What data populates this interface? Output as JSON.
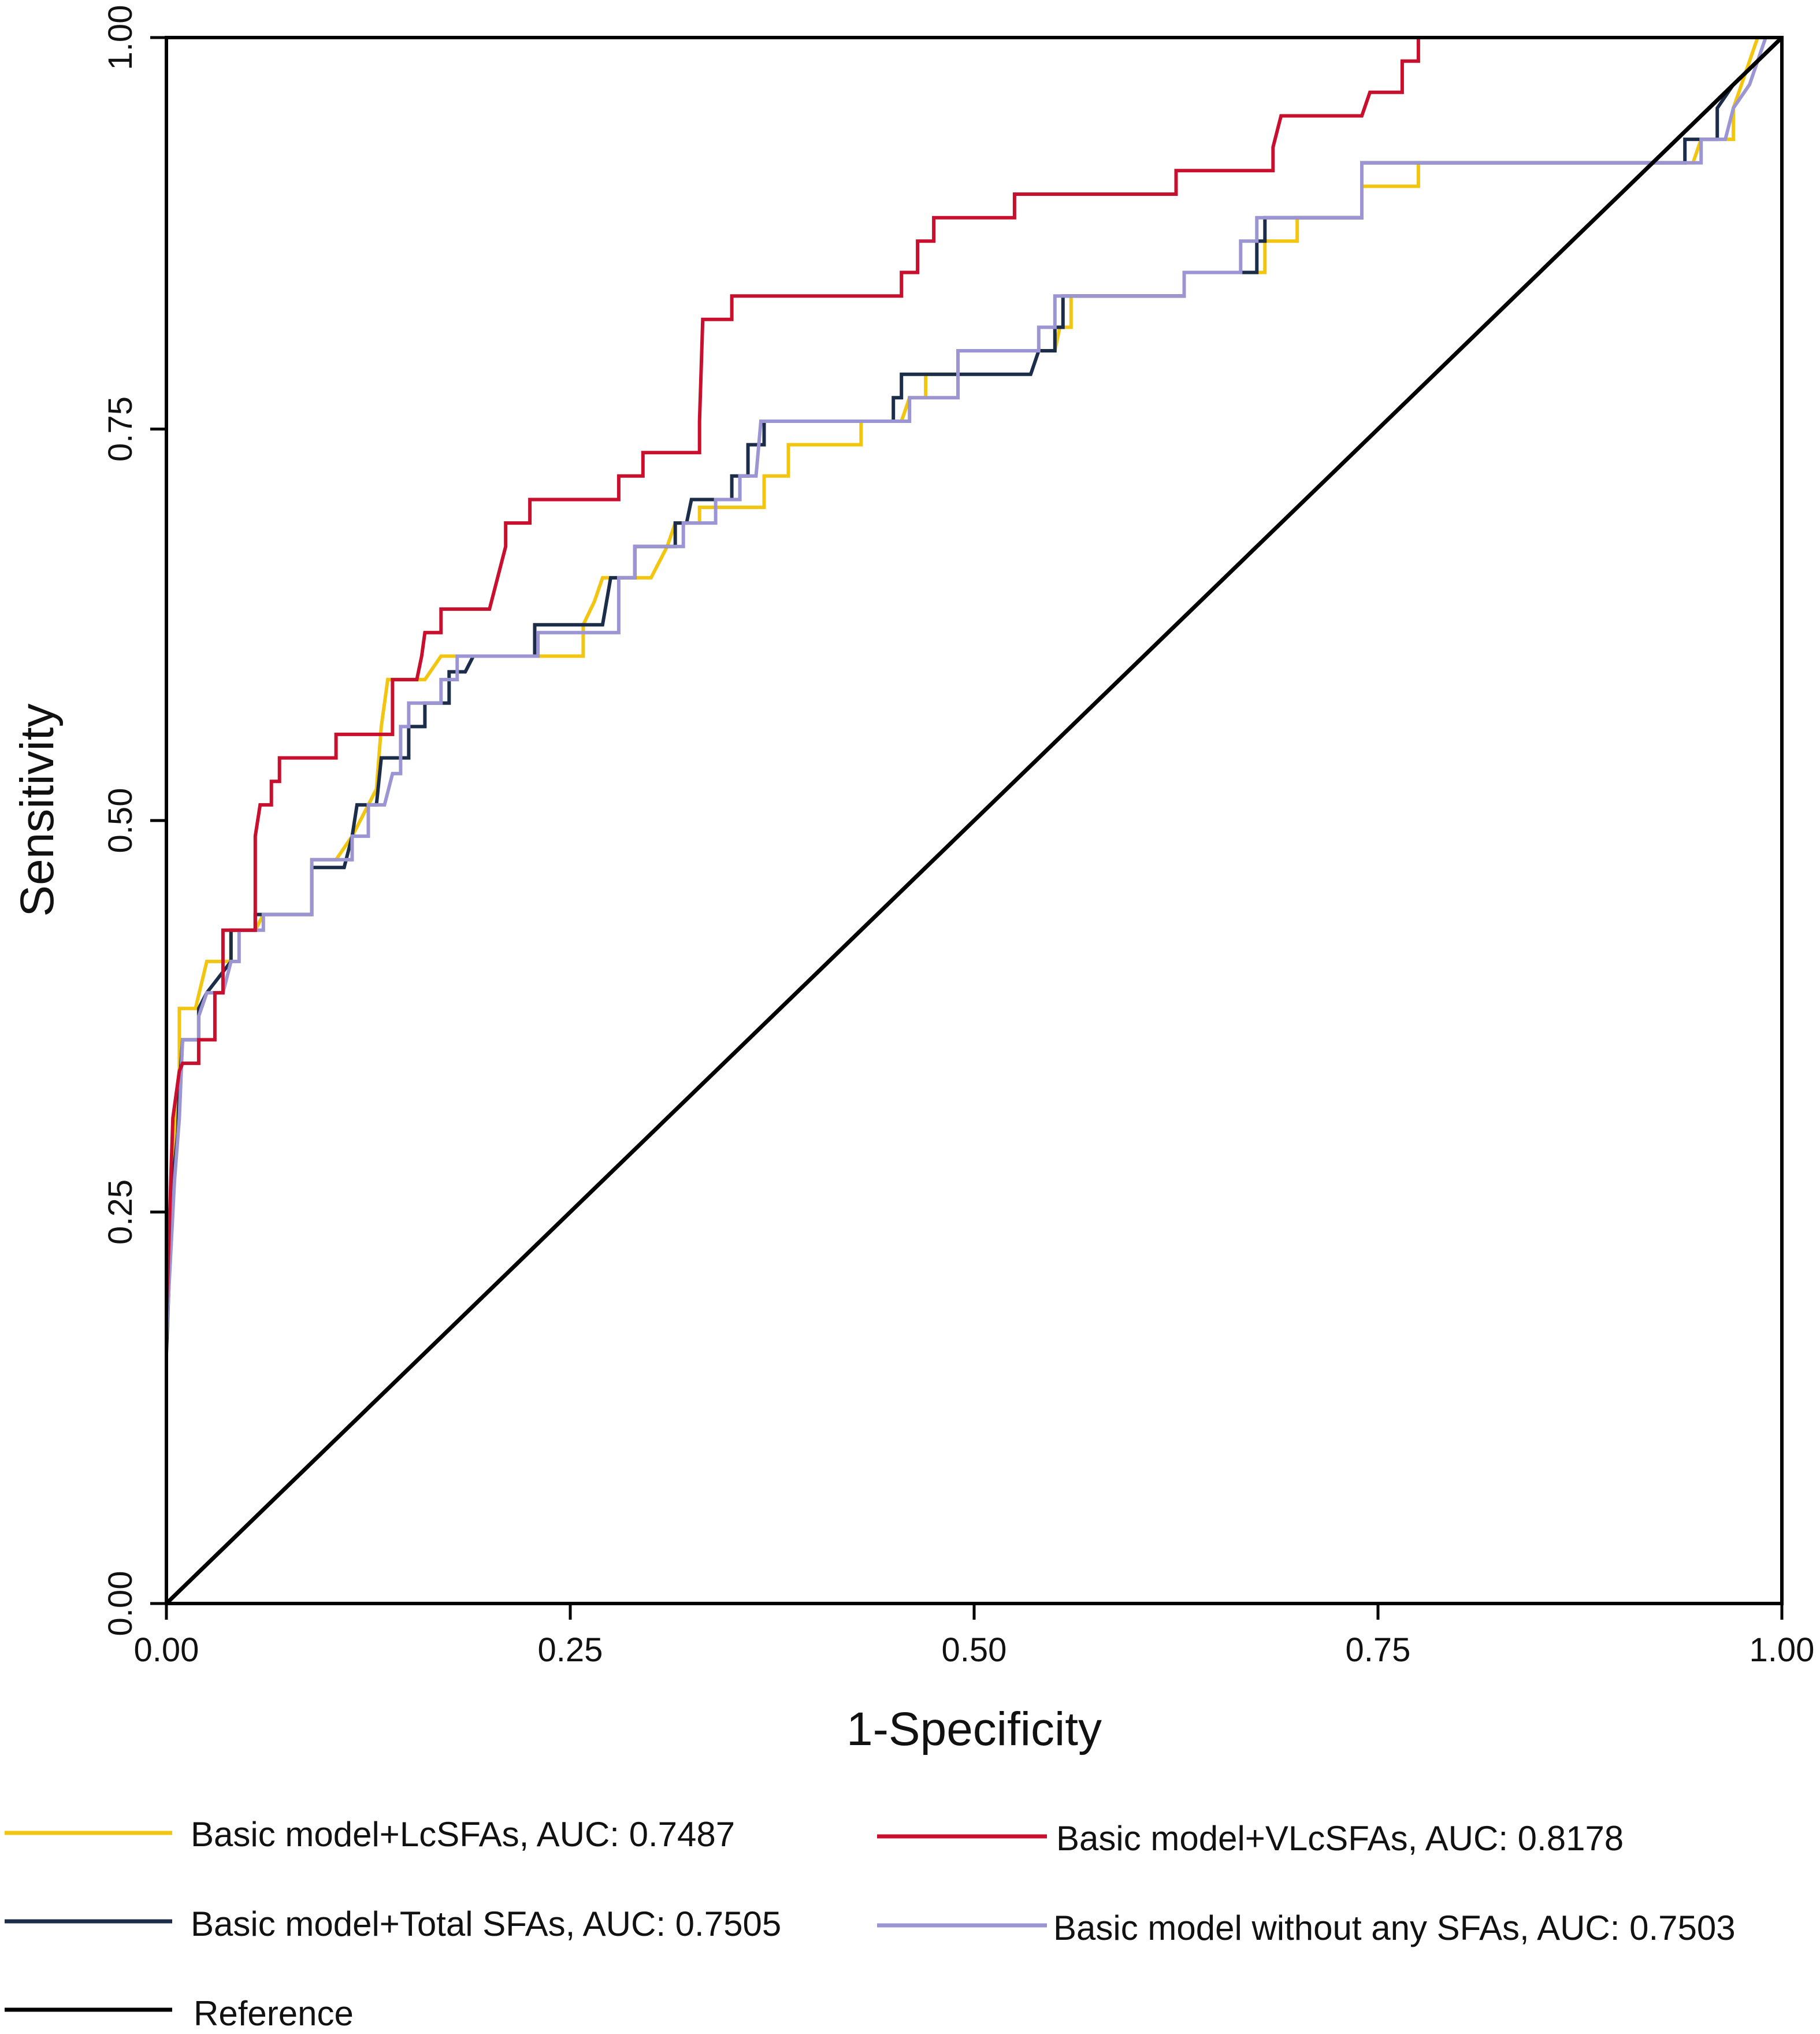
{
  "chart_data": {
    "type": "line",
    "title": "",
    "xlabel": "1-Specificity",
    "ylabel": "Sensitivity",
    "xlim": [
      0,
      1
    ],
    "ylim": [
      0,
      1
    ],
    "x_ticks": [
      "0.00",
      "0.25",
      "0.50",
      "0.75",
      "1.00"
    ],
    "y_ticks": [
      "0.00",
      "0.25",
      "0.50",
      "0.75",
      "1.00"
    ],
    "grid": false,
    "legend_position": "bottom",
    "series": [
      {
        "name": "Basic model+LcSFAs",
        "label": "Basic model+LcSFAs, AUC: 0.7487",
        "auc": 0.7487,
        "color": "#f2c511",
        "points": [
          [
            0,
            0
          ],
          [
            0,
            0.16
          ],
          [
            0.003,
            0.25
          ],
          [
            0.005,
            0.3
          ],
          [
            0.008,
            0.34
          ],
          [
            0.008,
            0.38
          ],
          [
            0.018,
            0.38
          ],
          [
            0.025,
            0.41
          ],
          [
            0.04,
            0.41
          ],
          [
            0.04,
            0.43
          ],
          [
            0.055,
            0.43
          ],
          [
            0.06,
            0.44
          ],
          [
            0.09,
            0.44
          ],
          [
            0.09,
            0.475
          ],
          [
            0.105,
            0.475
          ],
          [
            0.115,
            0.49
          ],
          [
            0.125,
            0.51
          ],
          [
            0.13,
            0.52
          ],
          [
            0.133,
            0.56
          ],
          [
            0.137,
            0.59
          ],
          [
            0.16,
            0.59
          ],
          [
            0.17,
            0.605
          ],
          [
            0.19,
            0.605
          ],
          [
            0.23,
            0.605
          ],
          [
            0.258,
            0.605
          ],
          [
            0.258,
            0.625
          ],
          [
            0.265,
            0.64
          ],
          [
            0.27,
            0.655
          ],
          [
            0.3,
            0.655
          ],
          [
            0.31,
            0.675
          ],
          [
            0.315,
            0.69
          ],
          [
            0.33,
            0.69
          ],
          [
            0.33,
            0.7
          ],
          [
            0.37,
            0.7
          ],
          [
            0.37,
            0.72
          ],
          [
            0.385,
            0.72
          ],
          [
            0.385,
            0.74
          ],
          [
            0.43,
            0.74
          ],
          [
            0.43,
            0.755
          ],
          [
            0.455,
            0.755
          ],
          [
            0.46,
            0.77
          ],
          [
            0.47,
            0.77
          ],
          [
            0.47,
            0.785
          ],
          [
            0.49,
            0.785
          ],
          [
            0.49,
            0.8
          ],
          [
            0.55,
            0.8
          ],
          [
            0.553,
            0.815
          ],
          [
            0.56,
            0.815
          ],
          [
            0.56,
            0.835
          ],
          [
            0.63,
            0.835
          ],
          [
            0.63,
            0.85
          ],
          [
            0.68,
            0.85
          ],
          [
            0.68,
            0.87
          ],
          [
            0.7,
            0.87
          ],
          [
            0.7,
            0.885
          ],
          [
            0.74,
            0.885
          ],
          [
            0.74,
            0.905
          ],
          [
            0.775,
            0.905
          ],
          [
            0.775,
            0.92
          ],
          [
            0.945,
            0.92
          ],
          [
            0.95,
            0.935
          ],
          [
            0.97,
            0.935
          ],
          [
            0.97,
            0.955
          ],
          [
            0.975,
            0.97
          ],
          [
            0.985,
            1
          ],
          [
            1,
            1
          ]
        ]
      },
      {
        "name": "Basic model+VLcSFAs",
        "label": "Basic model+VLcSFAs, AUC: 0.8178",
        "auc": 0.8178,
        "color": "#c8102e",
        "points": [
          [
            0,
            0
          ],
          [
            0,
            0.18
          ],
          [
            0.003,
            0.28
          ],
          [
            0.004,
            0.31
          ],
          [
            0.008,
            0.34
          ],
          [
            0.01,
            0.345
          ],
          [
            0.02,
            0.345
          ],
          [
            0.02,
            0.36
          ],
          [
            0.03,
            0.36
          ],
          [
            0.03,
            0.39
          ],
          [
            0.035,
            0.39
          ],
          [
            0.035,
            0.43
          ],
          [
            0.055,
            0.43
          ],
          [
            0.055,
            0.49
          ],
          [
            0.058,
            0.51
          ],
          [
            0.065,
            0.51
          ],
          [
            0.065,
            0.525
          ],
          [
            0.07,
            0.525
          ],
          [
            0.07,
            0.54
          ],
          [
            0.105,
            0.54
          ],
          [
            0.105,
            0.555
          ],
          [
            0.14,
            0.555
          ],
          [
            0.14,
            0.59
          ],
          [
            0.155,
            0.59
          ],
          [
            0.158,
            0.605
          ],
          [
            0.16,
            0.62
          ],
          [
            0.17,
            0.62
          ],
          [
            0.17,
            0.635
          ],
          [
            0.2,
            0.635
          ],
          [
            0.205,
            0.655
          ],
          [
            0.21,
            0.675
          ],
          [
            0.21,
            0.69
          ],
          [
            0.225,
            0.69
          ],
          [
            0.225,
            0.705
          ],
          [
            0.28,
            0.705
          ],
          [
            0.28,
            0.72
          ],
          [
            0.295,
            0.72
          ],
          [
            0.295,
            0.735
          ],
          [
            0.33,
            0.735
          ],
          [
            0.33,
            0.755
          ],
          [
            0.332,
            0.82
          ],
          [
            0.35,
            0.82
          ],
          [
            0.35,
            0.835
          ],
          [
            0.455,
            0.835
          ],
          [
            0.455,
            0.85
          ],
          [
            0.465,
            0.85
          ],
          [
            0.465,
            0.87
          ],
          [
            0.475,
            0.87
          ],
          [
            0.475,
            0.885
          ],
          [
            0.525,
            0.885
          ],
          [
            0.525,
            0.9
          ],
          [
            0.625,
            0.9
          ],
          [
            0.625,
            0.915
          ],
          [
            0.685,
            0.915
          ],
          [
            0.685,
            0.93
          ],
          [
            0.69,
            0.95
          ],
          [
            0.74,
            0.95
          ],
          [
            0.745,
            0.965
          ],
          [
            0.765,
            0.965
          ],
          [
            0.765,
            0.985
          ],
          [
            0.775,
            0.985
          ],
          [
            0.775,
            1
          ],
          [
            1,
            1
          ]
        ]
      },
      {
        "name": "Basic model+Total SFAs",
        "label": "Basic model+Total SFAs, AUC: 0.7505",
        "auc": 0.7505,
        "color": "#1c2d4a",
        "points": [
          [
            0,
            0
          ],
          [
            0,
            0.16
          ],
          [
            0.004,
            0.27
          ],
          [
            0.007,
            0.3
          ],
          [
            0.008,
            0.33
          ],
          [
            0.01,
            0.36
          ],
          [
            0.02,
            0.36
          ],
          [
            0.02,
            0.38
          ],
          [
            0.025,
            0.39
          ],
          [
            0.04,
            0.41
          ],
          [
            0.04,
            0.43
          ],
          [
            0.055,
            0.43
          ],
          [
            0.055,
            0.44
          ],
          [
            0.09,
            0.44
          ],
          [
            0.09,
            0.47
          ],
          [
            0.11,
            0.47
          ],
          [
            0.115,
            0.49
          ],
          [
            0.118,
            0.51
          ],
          [
            0.13,
            0.51
          ],
          [
            0.133,
            0.54
          ],
          [
            0.15,
            0.54
          ],
          [
            0.15,
            0.56
          ],
          [
            0.16,
            0.56
          ],
          [
            0.16,
            0.575
          ],
          [
            0.175,
            0.575
          ],
          [
            0.175,
            0.595
          ],
          [
            0.185,
            0.595
          ],
          [
            0.19,
            0.605
          ],
          [
            0.228,
            0.605
          ],
          [
            0.228,
            0.625
          ],
          [
            0.27,
            0.625
          ],
          [
            0.275,
            0.655
          ],
          [
            0.29,
            0.655
          ],
          [
            0.29,
            0.675
          ],
          [
            0.315,
            0.675
          ],
          [
            0.315,
            0.69
          ],
          [
            0.322,
            0.69
          ],
          [
            0.325,
            0.705
          ],
          [
            0.35,
            0.705
          ],
          [
            0.35,
            0.72
          ],
          [
            0.36,
            0.72
          ],
          [
            0.36,
            0.74
          ],
          [
            0.37,
            0.74
          ],
          [
            0.37,
            0.755
          ],
          [
            0.45,
            0.755
          ],
          [
            0.45,
            0.77
          ],
          [
            0.455,
            0.77
          ],
          [
            0.455,
            0.785
          ],
          [
            0.535,
            0.785
          ],
          [
            0.54,
            0.8
          ],
          [
            0.55,
            0.8
          ],
          [
            0.55,
            0.815
          ],
          [
            0.555,
            0.815
          ],
          [
            0.555,
            0.835
          ],
          [
            0.63,
            0.835
          ],
          [
            0.63,
            0.85
          ],
          [
            0.675,
            0.85
          ],
          [
            0.675,
            0.87
          ],
          [
            0.68,
            0.87
          ],
          [
            0.68,
            0.885
          ],
          [
            0.74,
            0.885
          ],
          [
            0.74,
            0.92
          ],
          [
            0.94,
            0.92
          ],
          [
            0.94,
            0.935
          ],
          [
            0.96,
            0.935
          ],
          [
            0.96,
            0.955
          ],
          [
            0.97,
            0.97
          ],
          [
            0.985,
            0.985
          ],
          [
            1,
            1
          ]
        ]
      },
      {
        "name": "Basic model without any SFAs",
        "label": "Basic model without any SFAs, AUC: 0.7503",
        "auc": 0.7503,
        "color": "#9b96d3",
        "points": [
          [
            0,
            0
          ],
          [
            0,
            0.17
          ],
          [
            0.005,
            0.27
          ],
          [
            0.008,
            0.31
          ],
          [
            0.01,
            0.36
          ],
          [
            0.02,
            0.36
          ],
          [
            0.02,
            0.375
          ],
          [
            0.025,
            0.39
          ],
          [
            0.035,
            0.39
          ],
          [
            0.04,
            0.41
          ],
          [
            0.045,
            0.41
          ],
          [
            0.045,
            0.43
          ],
          [
            0.06,
            0.43
          ],
          [
            0.06,
            0.44
          ],
          [
            0.09,
            0.44
          ],
          [
            0.09,
            0.475
          ],
          [
            0.115,
            0.475
          ],
          [
            0.115,
            0.49
          ],
          [
            0.125,
            0.49
          ],
          [
            0.125,
            0.51
          ],
          [
            0.135,
            0.51
          ],
          [
            0.14,
            0.53
          ],
          [
            0.145,
            0.53
          ],
          [
            0.145,
            0.56
          ],
          [
            0.15,
            0.56
          ],
          [
            0.15,
            0.575
          ],
          [
            0.17,
            0.575
          ],
          [
            0.17,
            0.59
          ],
          [
            0.18,
            0.59
          ],
          [
            0.18,
            0.605
          ],
          [
            0.23,
            0.605
          ],
          [
            0.23,
            0.62
          ],
          [
            0.28,
            0.62
          ],
          [
            0.28,
            0.655
          ],
          [
            0.29,
            0.655
          ],
          [
            0.29,
            0.675
          ],
          [
            0.32,
            0.675
          ],
          [
            0.32,
            0.69
          ],
          [
            0.34,
            0.69
          ],
          [
            0.34,
            0.705
          ],
          [
            0.355,
            0.705
          ],
          [
            0.355,
            0.72
          ],
          [
            0.365,
            0.72
          ],
          [
            0.368,
            0.755
          ],
          [
            0.46,
            0.755
          ],
          [
            0.46,
            0.77
          ],
          [
            0.49,
            0.77
          ],
          [
            0.49,
            0.8
          ],
          [
            0.54,
            0.8
          ],
          [
            0.54,
            0.815
          ],
          [
            0.55,
            0.815
          ],
          [
            0.55,
            0.835
          ],
          [
            0.63,
            0.835
          ],
          [
            0.63,
            0.85
          ],
          [
            0.665,
            0.85
          ],
          [
            0.665,
            0.87
          ],
          [
            0.675,
            0.87
          ],
          [
            0.675,
            0.885
          ],
          [
            0.74,
            0.885
          ],
          [
            0.74,
            0.92
          ],
          [
            0.95,
            0.92
          ],
          [
            0.95,
            0.935
          ],
          [
            0.965,
            0.935
          ],
          [
            0.97,
            0.955
          ],
          [
            0.98,
            0.97
          ],
          [
            0.99,
            1
          ],
          [
            1,
            1
          ]
        ]
      },
      {
        "name": "Reference",
        "label": "Reference",
        "color": "#000000",
        "points": [
          [
            0,
            0
          ],
          [
            1,
            1
          ]
        ]
      }
    ]
  }
}
